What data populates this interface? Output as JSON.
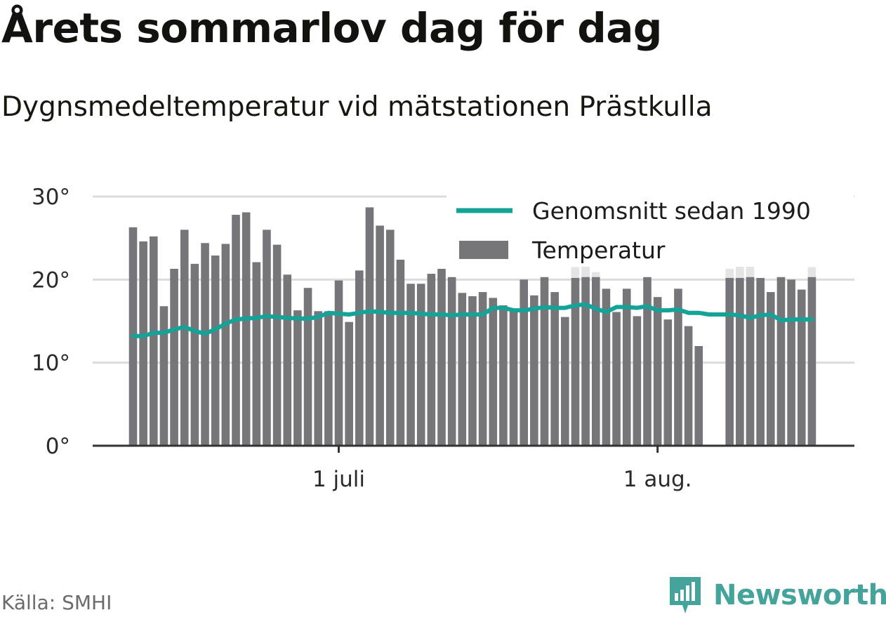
{
  "title": "Årets sommarlov dag för dag",
  "subtitle": "Dygnsmedeltemperatur vid mätstationen Prästkulla",
  "source": "Källa: SMHI",
  "brand": {
    "name": "Newsworthy",
    "icon": "bar-chart-logo-icon",
    "color": "#44a39a"
  },
  "chart_data": {
    "type": "bar",
    "title": "Årets sommarlov dag för dag",
    "subtitle": "Dygnsmedeltemperatur vid mätstationen Prästkulla",
    "x_start_date": "2020-06-11",
    "x_ticks": [
      {
        "date": "2020-07-01",
        "label": "1 juli"
      },
      {
        "date": "2020-08-01",
        "label": "1 aug."
      }
    ],
    "y_ticks": [
      {
        "value": 0,
        "label": "0°"
      },
      {
        "value": 10,
        "label": "10°"
      },
      {
        "value": 20,
        "label": "20°"
      },
      {
        "value": 30,
        "label": "30°"
      }
    ],
    "ylim": [
      0,
      30
    ],
    "grid": true,
    "legend_position": "top-right",
    "colors": {
      "bars": "#76757a",
      "line": "#14a396",
      "grid": "#dcdcdc",
      "axis": "#333333",
      "ghost": "#e4e4e4"
    },
    "series": [
      {
        "name": "Temperatur",
        "type": "bar",
        "values": [
          26.3,
          24.6,
          25.2,
          16.8,
          21.3,
          26.0,
          21.9,
          24.4,
          22.9,
          24.3,
          27.8,
          28.1,
          22.1,
          26.0,
          24.2,
          20.6,
          16.3,
          19.0,
          16.2,
          16.2,
          19.9,
          14.9,
          21.1,
          28.7,
          26.5,
          26.0,
          22.4,
          19.5,
          19.5,
          20.7,
          21.3,
          20.3,
          18.4,
          18.0,
          18.5,
          17.8,
          16.9,
          16.4,
          20.0,
          18.1,
          20.3,
          18.5,
          15.5,
          20.2,
          20.3,
          20.3,
          18.9,
          16.1,
          18.9,
          15.6,
          20.3,
          17.9,
          15.2,
          18.9,
          14.4,
          12.0,
          null,
          null,
          20.2,
          20.2,
          20.3,
          20.2,
          18.5,
          20.3,
          20.0,
          18.8,
          20.3
        ]
      },
      {
        "name": "Genomsnitt sedan 1990",
        "type": "line",
        "values": [
          13.2,
          13.2,
          13.6,
          13.6,
          14.0,
          14.3,
          13.8,
          13.5,
          14.0,
          14.7,
          15.2,
          15.3,
          15.4,
          15.6,
          15.5,
          15.4,
          15.3,
          15.3,
          15.5,
          16.0,
          15.9,
          15.8,
          16.0,
          16.2,
          16.1,
          16.0,
          16.0,
          16.0,
          15.9,
          15.8,
          15.8,
          15.7,
          15.8,
          15.8,
          15.8,
          16.6,
          16.6,
          16.3,
          16.3,
          16.5,
          16.7,
          16.6,
          16.6,
          16.9,
          17.0,
          16.5,
          16.1,
          16.7,
          16.7,
          16.6,
          16.8,
          16.3,
          16.3,
          16.4,
          16.0,
          16.0,
          15.8,
          15.8,
          15.8,
          15.7,
          15.4,
          15.7,
          15.8,
          15.1,
          15.2,
          15.2,
          15.2
        ]
      },
      {
        "name": "",
        "type": "bar",
        "values": [
          null,
          null,
          null,
          null,
          null,
          null,
          null,
          null,
          null,
          null,
          null,
          null,
          null,
          null,
          null,
          null,
          null,
          null,
          null,
          null,
          null,
          null,
          null,
          null,
          null,
          null,
          null,
          null,
          null,
          null,
          null,
          null,
          null,
          null,
          null,
          null,
          null,
          null,
          null,
          null,
          null,
          null,
          null,
          21.5,
          21.8,
          20.9,
          null,
          null,
          null,
          null,
          null,
          null,
          null,
          null,
          null,
          null,
          null,
          null,
          21.3,
          21.9,
          24.0,
          null,
          null,
          null,
          null,
          null,
          21.5
        ]
      }
    ]
  }
}
